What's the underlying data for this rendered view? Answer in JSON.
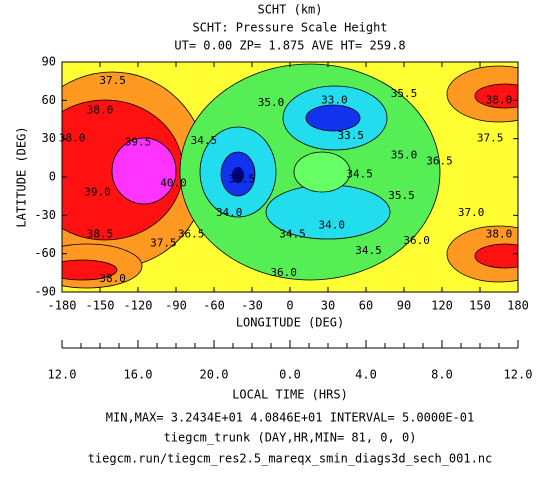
{
  "chart_data": {
    "type": "contour",
    "title": "SCHT (km)",
    "subtitle": "SCHT: Pressure Scale Height",
    "subtitle2": "UT= 0.00 ZP=  1.875 AVE HT= 259.8",
    "xlabel": "LONGITUDE (DEG)",
    "ylabel": "LATITUDE (DEG)",
    "xlim": [
      -180,
      180
    ],
    "ylim": [
      -90,
      90
    ],
    "xticks": [
      -180,
      -150,
      -120,
      -90,
      -60,
      -30,
      0,
      30,
      60,
      90,
      120,
      150,
      180
    ],
    "yticks": [
      -90,
      -60,
      -30,
      0,
      30,
      60,
      90
    ],
    "lt_label": "LOCAL TIME (HRS)",
    "lt_ticks": [
      {
        "value": -180,
        "label": "12.0"
      },
      {
        "value": -120,
        "label": "16.0"
      },
      {
        "value": -60,
        "label": "20.0"
      },
      {
        "value": 0,
        "label": "0.0"
      },
      {
        "value": 60,
        "label": "4.0"
      },
      {
        "value": 120,
        "label": "8.0"
      },
      {
        "value": 180,
        "label": "12.0"
      }
    ],
    "contour_labels": [
      {
        "x": -140,
        "y": 75,
        "value": 37.5,
        "label": "37.5"
      },
      {
        "x": -150,
        "y": 52,
        "value": 38,
        "label": "38.0"
      },
      {
        "x": -172,
        "y": 30,
        "value": 38,
        "label": "38.0"
      },
      {
        "x": -120,
        "y": 27,
        "value": 39.5,
        "label": "39.5"
      },
      {
        "x": -92,
        "y": -5,
        "value": 40,
        "label": "40.0"
      },
      {
        "x": -152,
        "y": -12,
        "value": 39,
        "label": "39.0"
      },
      {
        "x": -150,
        "y": -45,
        "value": 38.5,
        "label": "38.5"
      },
      {
        "x": -140,
        "y": -80,
        "value": 38,
        "label": "38.0"
      },
      {
        "x": -100,
        "y": -52,
        "value": 37.5,
        "label": "37.5"
      },
      {
        "x": -78,
        "y": -45,
        "value": 36.5,
        "label": "36.5"
      },
      {
        "x": -68,
        "y": 28,
        "value": 34.5,
        "label": "34.5"
      },
      {
        "x": -38,
        "y": -2,
        "value": 33.5,
        "label": "33.5"
      },
      {
        "x": -48,
        "y": -28,
        "value": 34,
        "label": "34.0"
      },
      {
        "x": -15,
        "y": 58,
        "value": 35,
        "label": "35.0"
      },
      {
        "x": 35,
        "y": 60,
        "value": 33,
        "label": "33.0"
      },
      {
        "x": 48,
        "y": 32,
        "value": 33.5,
        "label": "33.5"
      },
      {
        "x": 55,
        "y": 2,
        "value": 34.5,
        "label": "34.5"
      },
      {
        "x": 90,
        "y": 17,
        "value": 35,
        "label": "35.0"
      },
      {
        "x": 88,
        "y": -15,
        "value": 35.5,
        "label": "35.5"
      },
      {
        "x": 90,
        "y": 65,
        "value": 35.5,
        "label": "35.5"
      },
      {
        "x": 118,
        "y": 12,
        "value": 36.5,
        "label": "36.5"
      },
      {
        "x": 33,
        "y": -38,
        "value": 34,
        "label": "34.0"
      },
      {
        "x": 2,
        "y": -45,
        "value": 34.5,
        "label": "34.5"
      },
      {
        "x": 62,
        "y": -58,
        "value": 34.5,
        "label": "34.5"
      },
      {
        "x": -5,
        "y": -75,
        "value": 36,
        "label": "36.0"
      },
      {
        "x": 100,
        "y": -50,
        "value": 36,
        "label": "36.0"
      },
      {
        "x": 143,
        "y": -28,
        "value": 37,
        "label": "37.0"
      },
      {
        "x": 158,
        "y": 30,
        "value": 37.5,
        "label": "37.5"
      },
      {
        "x": 165,
        "y": 60,
        "value": 38,
        "label": "38.0"
      },
      {
        "x": 165,
        "y": -45,
        "value": 38,
        "label": "38.0"
      }
    ],
    "stats": "MIN,MAX=  3.2434E+01  4.0846E+01 INTERVAL=  5.0000E-01",
    "model": "tiegcm_trunk (DAY,HR,MIN= 81, 0, 0)",
    "file": "tiegcm.run/tiegcm_res2.5_mareqx_smin_diags3d_sech_001.nc"
  }
}
